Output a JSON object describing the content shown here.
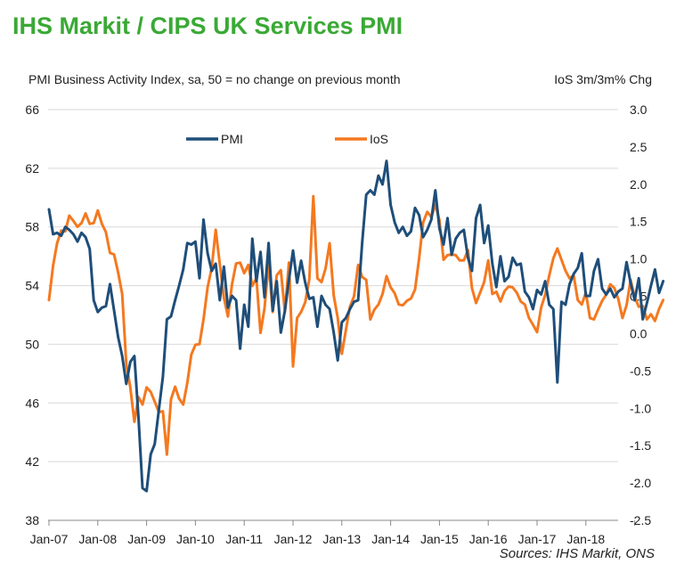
{
  "title": "IHS Markit / CIPS UK Services PMI",
  "subtitle_left": "PMI Business Activity Index, sa, 50 = no change on previous month",
  "subtitle_right": "IoS 3m/3m% Chg",
  "source": "Sources: IHS Markit, ONS",
  "colors": {
    "title": "#3aa935",
    "pmi": "#1f4e79",
    "ios": "#f47920",
    "grid": "#d9d9d9"
  },
  "chart_data": {
    "type": "line",
    "title": "IHS Markit / CIPS UK Services PMI",
    "x_labels": [
      "Jan-07",
      "Jan-08",
      "Jan-09",
      "Jan-10",
      "Jan-11",
      "Jan-12",
      "Jan-13",
      "Jan-14",
      "Jan-15",
      "Jan-16",
      "Jan-17",
      "Jan-18"
    ],
    "y_left": {
      "label": "PMI Business Activity Index, sa, 50 = no change on previous month",
      "ticks": [
        "66",
        "62",
        "58",
        "54",
        "50",
        "46",
        "42",
        "38"
      ],
      "range": [
        38,
        66
      ]
    },
    "y_right": {
      "label": "IoS 3m/3m% Chg",
      "ticks": [
        "3.0",
        "2.5",
        "2.0",
        "1.5",
        "1.0",
        "0.5",
        "0.0",
        "-0.5",
        "-1.0",
        "-1.5",
        "-2.0",
        "-2.5"
      ],
      "range": [
        -2.5,
        3.0
      ]
    },
    "legend": [
      "PMI",
      "IoS"
    ],
    "legend_position": "top-center",
    "series": [
      {
        "name": "PMI",
        "axis": "left",
        "values": [
          59.2,
          57.5,
          57.6,
          57.4,
          58.0,
          57.8,
          57.5,
          57.0,
          57.6,
          57.3,
          56.5,
          53.0,
          52.2,
          52.5,
          52.6,
          54.1,
          52.3,
          50.5,
          49.2,
          47.3,
          48.8,
          49.2,
          45.0,
          40.2,
          40.0,
          42.5,
          43.2,
          45.5,
          47.8,
          51.7,
          51.9,
          53.0,
          54.0,
          55.1,
          56.9,
          56.8,
          57.0,
          54.5,
          58.5,
          56.2,
          55.0,
          55.5,
          53.0,
          55.3,
          52.5,
          53.3,
          53.0,
          49.7,
          52.7,
          51.2,
          57.2,
          54.3,
          56.3,
          53.2,
          56.9,
          52.3,
          54.3,
          50.8,
          52.3,
          54.4,
          56.4,
          54.2,
          55.7,
          54.2,
          53.1,
          53.2,
          51.2,
          53.3,
          52.7,
          52.4,
          50.8,
          48.9,
          51.5,
          51.8,
          52.4,
          52.9,
          53.0,
          56.9,
          60.2,
          60.5,
          60.2,
          61.5,
          60.9,
          62.5,
          59.5,
          58.3,
          57.6,
          58.0,
          57.4,
          57.7,
          59.3,
          58.8,
          57.3,
          57.8,
          58.5,
          60.5,
          57.9,
          56.8,
          58.6,
          56.1,
          57.2,
          57.6,
          57.8,
          55.9,
          55.0,
          58.6,
          59.5,
          56.9,
          58.1,
          55.5,
          53.9,
          56.0,
          54.3,
          54.6,
          55.9,
          55.4,
          55.5,
          53.6,
          53.2,
          52.4,
          53.7,
          53.4,
          54.3,
          52.7,
          52.4,
          47.4,
          52.9,
          52.7,
          54.1,
          54.8,
          55.2,
          56.2,
          53.3,
          53.3,
          55.0,
          55.8,
          53.8,
          53.4,
          53.8,
          53.2,
          53.6,
          53.8,
          55.6,
          54.2,
          53.0,
          54.5,
          51.7,
          52.8,
          54.0,
          55.1,
          53.5,
          54.3
        ]
      },
      {
        "name": "IoS",
        "axis": "right",
        "values": [
          0.45,
          0.91,
          1.21,
          1.38,
          1.37,
          1.58,
          1.51,
          1.43,
          1.48,
          1.61,
          1.47,
          1.48,
          1.65,
          1.47,
          1.36,
          1.08,
          1.06,
          0.82,
          0.53,
          -0.41,
          -0.72,
          -1.18,
          -0.85,
          -0.95,
          -0.72,
          -0.78,
          -0.91,
          -1.05,
          -1.04,
          -1.62,
          -0.88,
          -0.71,
          -0.87,
          -0.95,
          -0.66,
          -0.28,
          -0.15,
          -0.14,
          0.19,
          0.62,
          0.88,
          1.39,
          0.93,
          0.48,
          0.23,
          0.66,
          0.94,
          0.95,
          0.81,
          0.92,
          0.64,
          0.74,
          0.01,
          0.34,
          0.95,
          0.29,
          0.78,
          0.85,
          0.29,
          0.95,
          -0.44,
          0.21,
          0.29,
          0.42,
          0.73,
          1.84,
          0.74,
          0.69,
          0.87,
          1.21,
          0.51,
          0.21,
          -0.27,
          0.05,
          0.36,
          0.5,
          0.92,
          0.76,
          0.72,
          0.19,
          0.32,
          0.39,
          0.53,
          0.77,
          0.62,
          0.54,
          0.39,
          0.38,
          0.44,
          0.47,
          0.59,
          1.01,
          1.49,
          1.63,
          1.56,
          1.73,
          1.52,
          0.99,
          1.05,
          1.06,
          1.05,
          0.98,
          0.98,
          1.12,
          0.61,
          0.41,
          0.55,
          0.69,
          0.98,
          0.53,
          0.56,
          0.43,
          0.57,
          0.63,
          0.62,
          0.55,
          0.43,
          0.39,
          0.21,
          0.12,
          0.02,
          0.35,
          0.52,
          0.78,
          1.01,
          1.14,
          0.99,
          0.84,
          0.74,
          0.78,
          0.45,
          0.39,
          0.55,
          0.21,
          0.19,
          0.32,
          0.44,
          0.52,
          0.66,
          0.61,
          0.46,
          0.21,
          0.38,
          0.72,
          0.49,
          0.36,
          0.37,
          0.19,
          0.26,
          0.17,
          0.33,
          0.45
        ]
      }
    ]
  }
}
